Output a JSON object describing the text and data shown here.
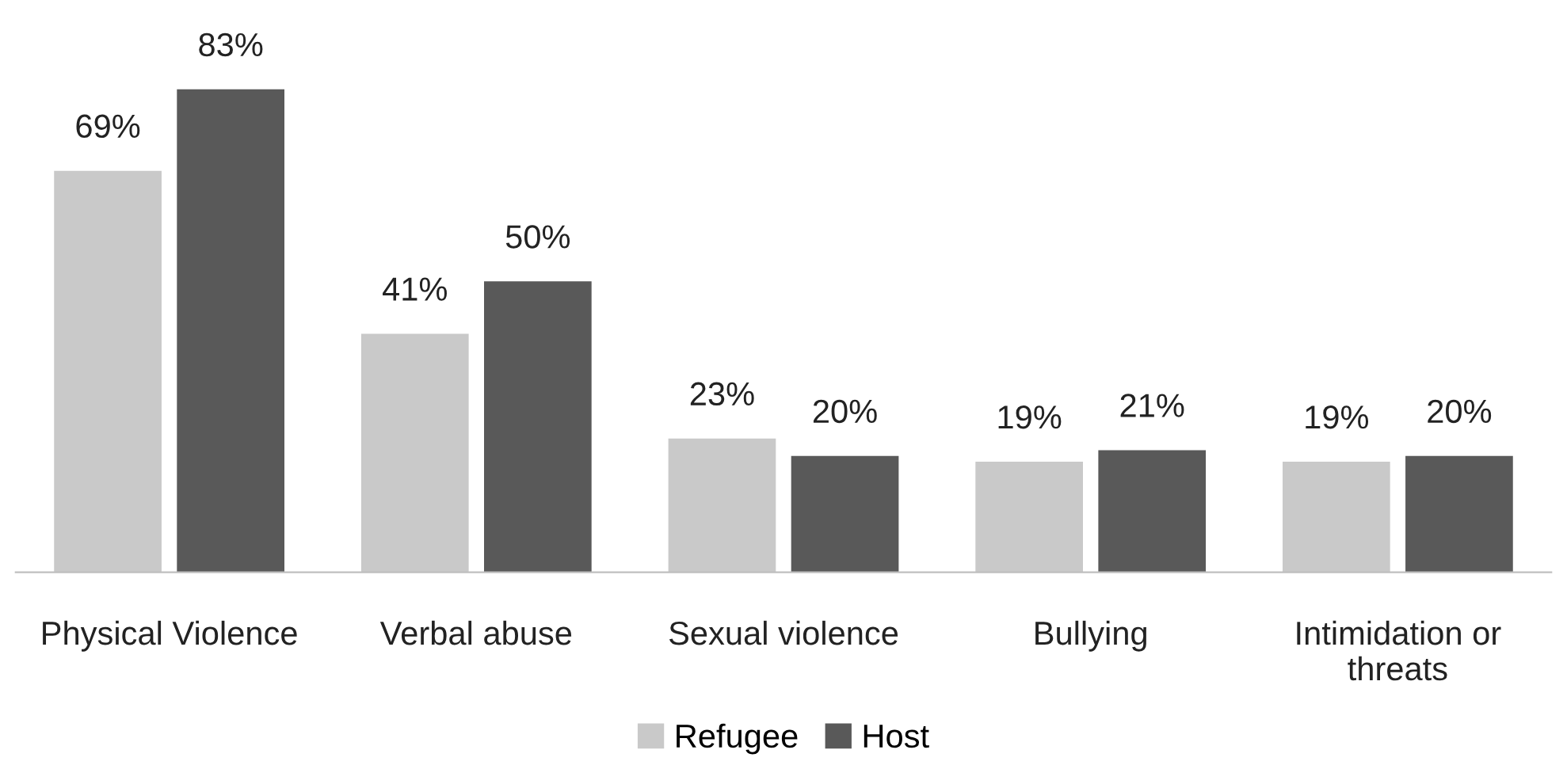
{
  "chart_data": {
    "type": "bar",
    "categories": [
      "Physical Violence",
      "Verbal abuse",
      "Sexual violence",
      "Bullying",
      "Intimidation or\nthreats"
    ],
    "series": [
      {
        "name": "Refugee",
        "color": "#c9c9c9",
        "values": [
          69,
          41,
          23,
          19,
          19
        ],
        "value_labels": [
          "69%",
          "41%",
          "23%",
          "19%",
          "19%"
        ]
      },
      {
        "name": "Host",
        "color": "#595959",
        "values": [
          83,
          50,
          20,
          21,
          20
        ],
        "value_labels": [
          "83%",
          "50%",
          "20%",
          "21%",
          "20%"
        ]
      }
    ],
    "legend": "bottom",
    "grid": false
  }
}
